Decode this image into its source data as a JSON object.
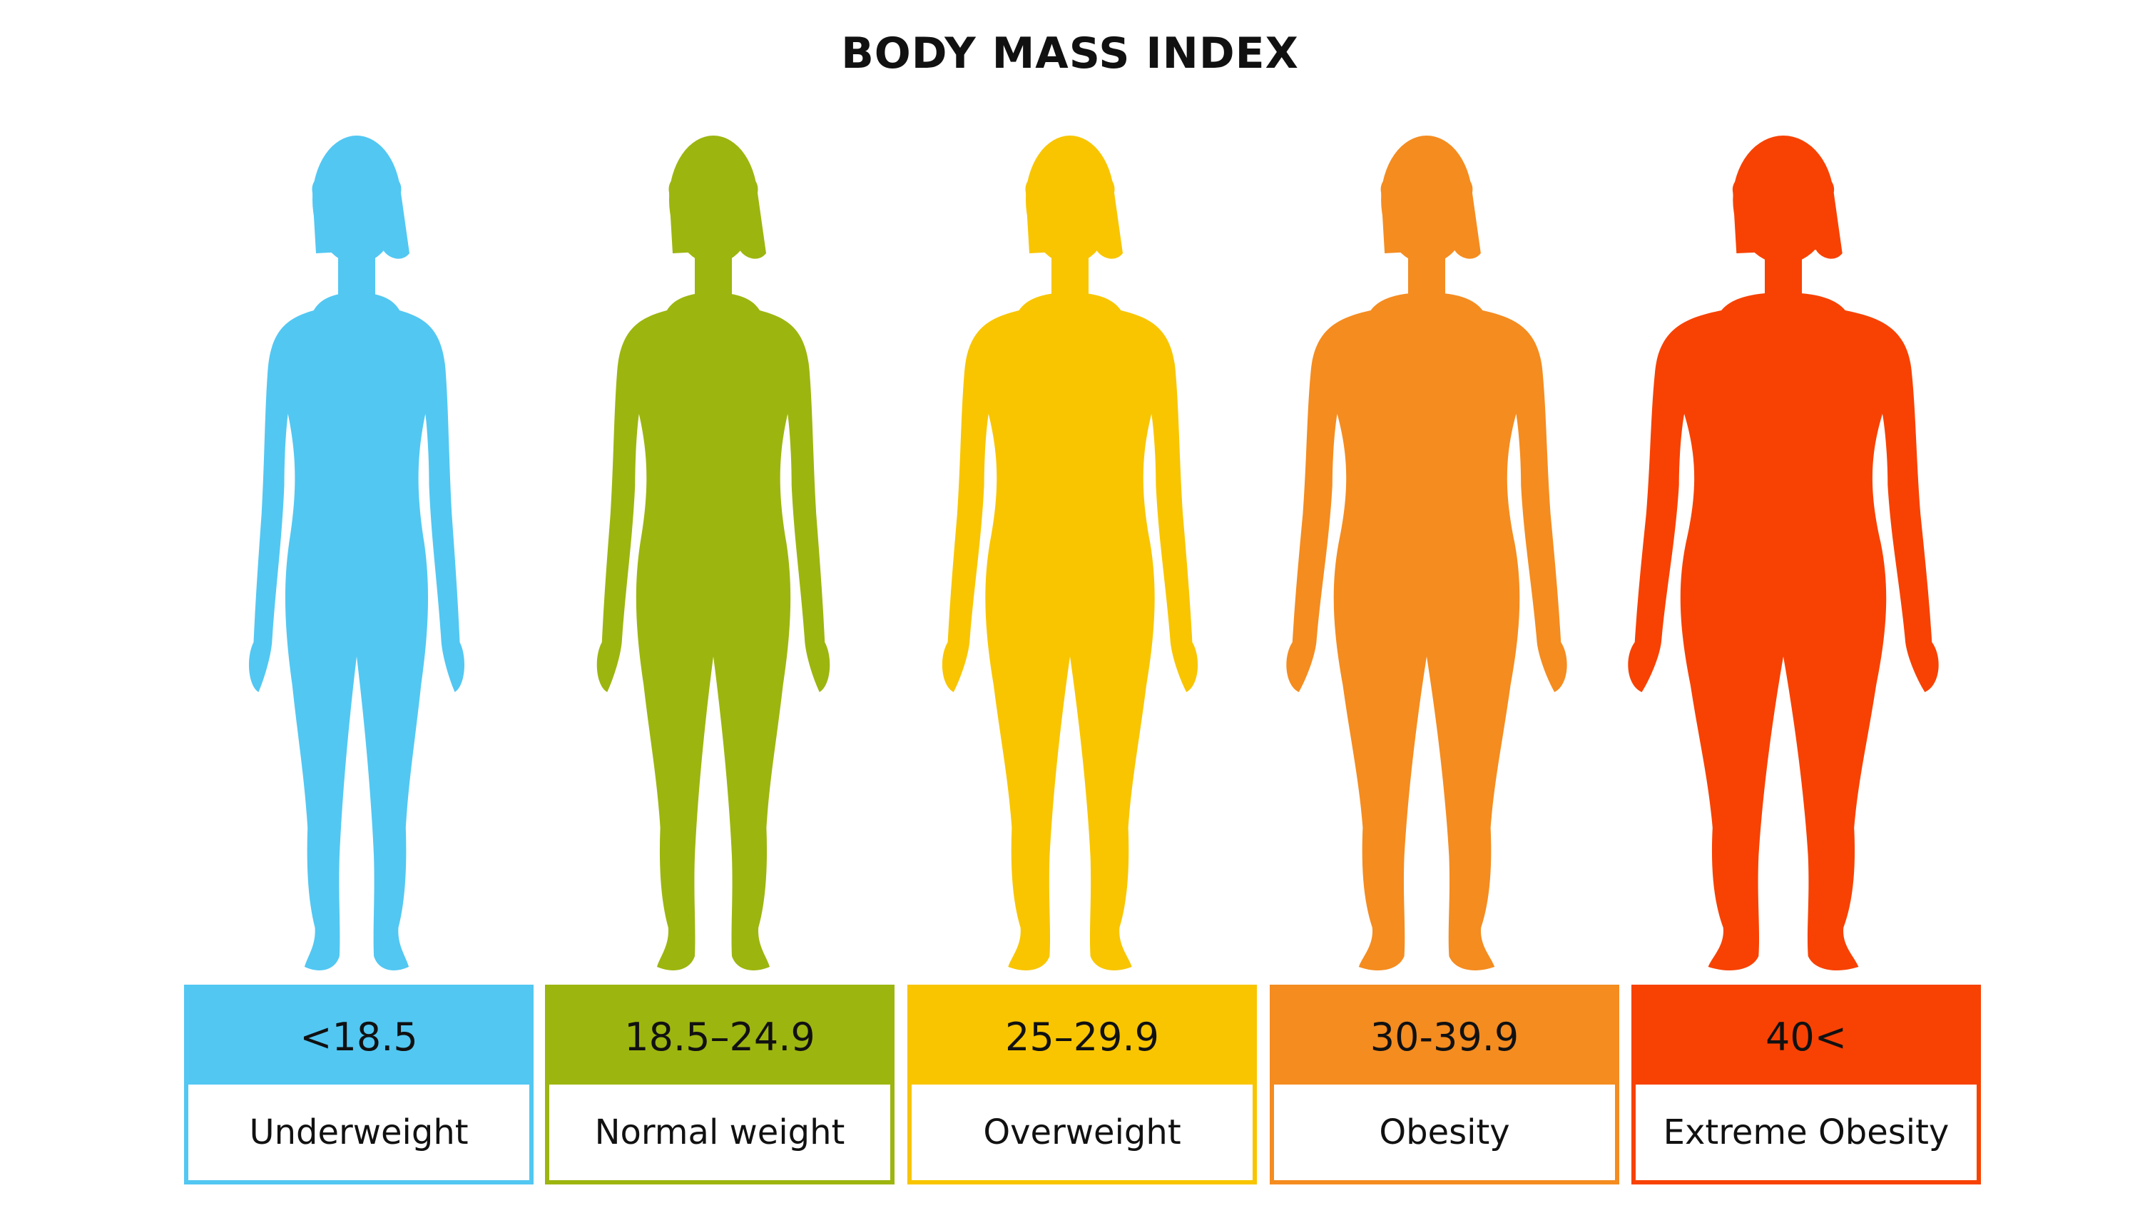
{
  "title": "BODY MASS INDEX",
  "categories": [
    {
      "range": "<18.5",
      "label": "Underweight",
      "color": "#52c7f2"
    },
    {
      "range": "18.5–24.9",
      "label": "Normal weight",
      "color": "#9db50f"
    },
    {
      "range": "25–29.9",
      "label": "Overweight",
      "color": "#f8c500"
    },
    {
      "range": "30-39.9",
      "label": "Obesity",
      "color": "#f48c20"
    },
    {
      "range": "40<",
      "label": "Extreme Obesity",
      "color": "#f74203"
    }
  ]
}
